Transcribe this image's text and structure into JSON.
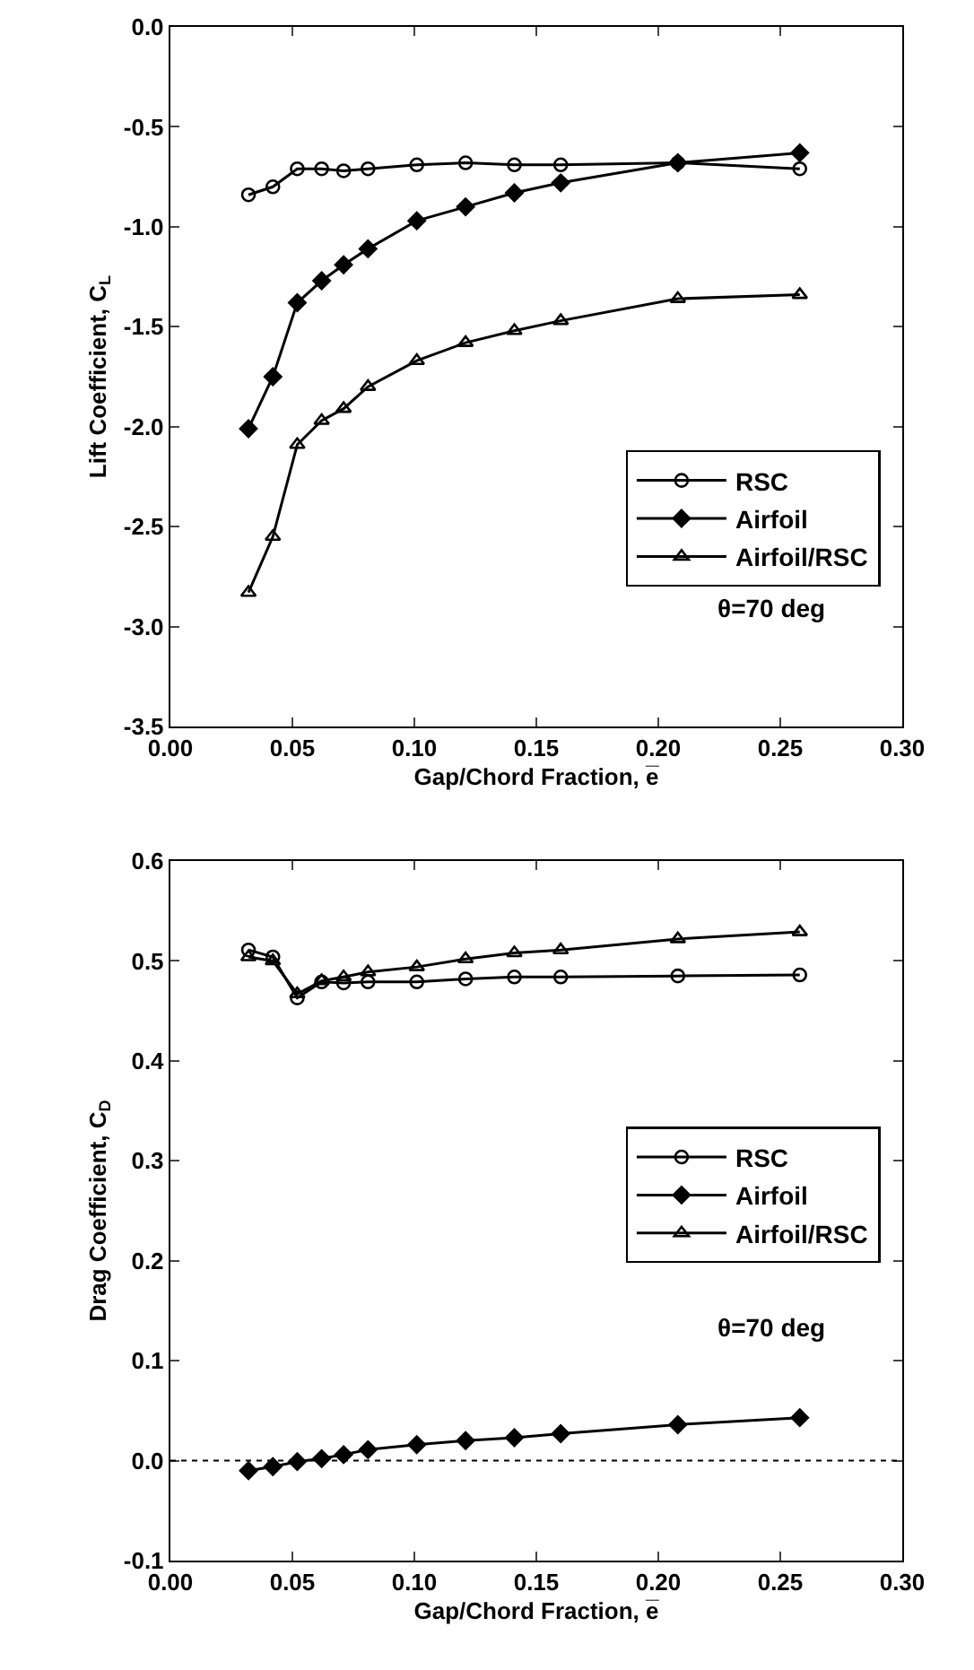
{
  "chart_data": [
    {
      "type": "line",
      "xlabel": "Gap/Chord Fraction, e̅",
      "ylabel": "Lift Coefficient, C$_{L}$",
      "x": [
        0.032,
        0.042,
        0.052,
        0.062,
        0.071,
        0.081,
        0.101,
        0.121,
        0.141,
        0.16,
        0.208,
        0.258
      ],
      "series": [
        {
          "name": "RSC",
          "color": "#000000",
          "marker": "circle",
          "values": [
            -0.84,
            -0.8,
            -0.71,
            -0.71,
            -0.72,
            -0.71,
            -0.69,
            -0.68,
            -0.69,
            -0.69,
            -0.68,
            -0.71
          ]
        },
        {
          "name": "Airfoil",
          "color": "#000000",
          "marker": "diamond",
          "values": [
            -2.01,
            -1.75,
            -1.38,
            -1.27,
            -1.19,
            -1.11,
            -0.97,
            -0.9,
            -0.83,
            -0.78,
            -0.68,
            -0.63
          ]
        },
        {
          "name": "Airfoil/RSC",
          "color": "#000000",
          "marker": "triangle",
          "values": [
            -2.83,
            -2.55,
            -2.09,
            -1.97,
            -1.91,
            -1.8,
            -1.67,
            -1.58,
            -1.52,
            -1.47,
            -1.36,
            -1.34
          ]
        }
      ],
      "xlim": [
        0,
        0.3
      ],
      "xticks": [
        {
          "value": 0,
          "label": "0.00"
        },
        {
          "value": 0.05,
          "label": "0.05"
        },
        {
          "value": 0.1,
          "label": "0.10"
        },
        {
          "value": 0.15,
          "label": "0.15"
        },
        {
          "value": 0.2,
          "label": "0.20"
        },
        {
          "value": 0.25,
          "label": "0.25"
        },
        {
          "value": 0.3,
          "label": "0.30"
        }
      ],
      "ylim": [
        -3.5,
        0
      ],
      "yticks": [
        {
          "value": 0,
          "label": "0.0"
        },
        -0.5,
        {
          "value": -1,
          "label": "-1.0"
        },
        -1.5,
        {
          "value": -2,
          "label": "-2.0"
        },
        -2.5,
        {
          "value": -3,
          "label": "-3.0"
        },
        -3.5
      ],
      "grid": false,
      "legend": "bottom right",
      "line_style": "solid",
      "annotations": [
        "θ=70 deg"
      ]
    },
    {
      "type": "line",
      "xlabel": "Gap/Chord Fraction, e̅",
      "ylabel": "Drag Coefficient, C$_{D}$",
      "x": [
        0.032,
        0.042,
        0.052,
        0.062,
        0.071,
        0.081,
        0.101,
        0.121,
        0.141,
        0.16,
        0.208,
        0.258
      ],
      "series": [
        {
          "name": "RSC",
          "color": "#000000",
          "marker": "circle",
          "values": [
            0.511,
            0.504,
            0.463,
            0.479,
            0.478,
            0.479,
            0.479,
            0.482,
            0.484,
            0.484,
            0.485,
            0.486
          ]
        },
        {
          "name": "Airfoil",
          "color": "#000000",
          "marker": "diamond",
          "values": [
            -0.01,
            -0.006,
            -0.001,
            0.002,
            0.006,
            0.011,
            0.016,
            0.02,
            0.023,
            0.027,
            0.036,
            0.043
          ]
        },
        {
          "name": "Airfoil/RSC",
          "color": "#000000",
          "marker": "triangle",
          "values": [
            0.504,
            0.5,
            0.467,
            0.48,
            0.484,
            0.489,
            0.494,
            0.502,
            0.508,
            0.511,
            0.522,
            0.529
          ]
        }
      ],
      "xlim": [
        0,
        0.3
      ],
      "xticks": [
        {
          "value": 0,
          "label": "0.00"
        },
        {
          "value": 0.05,
          "label": "0.05"
        },
        {
          "value": 0.1,
          "label": "0.10"
        },
        {
          "value": 0.15,
          "label": "0.15"
        },
        {
          "value": 0.2,
          "label": "0.20"
        },
        {
          "value": 0.25,
          "label": "0.25"
        },
        {
          "value": 0.3,
          "label": "0.30"
        }
      ],
      "ylim": [
        -0.1,
        0.6
      ],
      "yticks": [
        -0.1,
        {
          "value": 0,
          "label": "0.0"
        },
        0.1,
        0.2,
        0.3,
        0.4,
        0.5,
        0.6
      ],
      "ref_lines": [
        {
          "axis": "y",
          "value": 0,
          "line_style": "dotted"
        }
      ],
      "grid": false,
      "legend": "right",
      "line_style": "solid",
      "annotations": [
        "θ=70 deg"
      ]
    }
  ]
}
